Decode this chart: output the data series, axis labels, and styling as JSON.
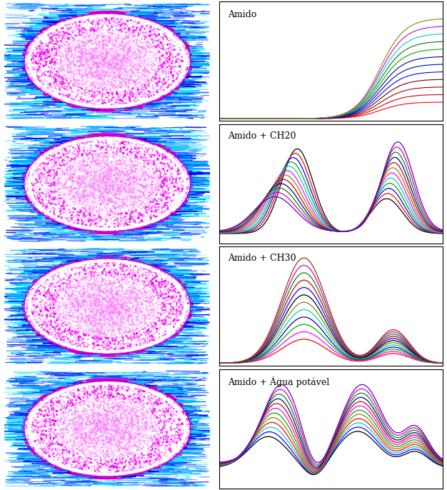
{
  "panels": [
    {
      "label": "Amido"
    },
    {
      "label": "Amido + CH20"
    },
    {
      "label": "Amido + CH30"
    },
    {
      "label": "Amido + Água potável"
    }
  ],
  "amido_colors": [
    "#ff0000",
    "#cc0000",
    "#990000",
    "#660000",
    "#0000ff",
    "#0000cc",
    "#000099",
    "#00aa00",
    "#007700",
    "#00cccc",
    "#cc00cc",
    "#888800"
  ],
  "ch20_colors": [
    "#000000",
    "#ff0000",
    "#0000ff",
    "#00aa00",
    "#00cccc",
    "#ff00ff",
    "#888800",
    "#cc0000",
    "#000099",
    "#008800",
    "#cc00cc",
    "#6600aa"
  ],
  "ch30_colors": [
    "#ff0000",
    "#ff00ff",
    "#00aa00",
    "#000099",
    "#00cccc",
    "#888800",
    "#000000",
    "#0000ff",
    "#cc0000",
    "#008800",
    "#cc00cc",
    "#993300"
  ],
  "agua_colors": [
    "#000000",
    "#0000ff",
    "#00cccc",
    "#ff0000",
    "#888800",
    "#00aa00",
    "#ff00ff",
    "#cc0000",
    "#000099",
    "#008800",
    "#cc00cc",
    "#6600aa"
  ],
  "bg_color": "#ffffff"
}
